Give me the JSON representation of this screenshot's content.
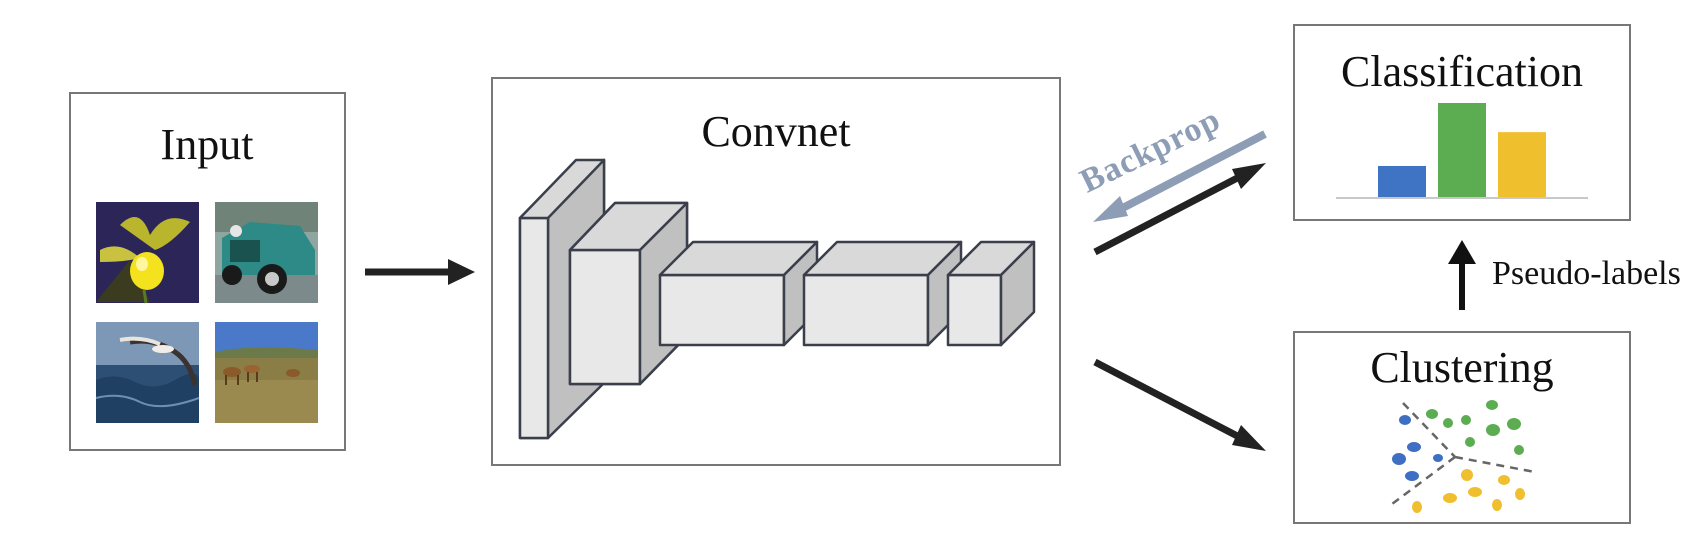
{
  "diagram": {
    "input": {
      "title": "Input",
      "thumbnails": [
        {
          "subject": "yellow orchid flower"
        },
        {
          "subject": "vintage teal car"
        },
        {
          "subject": "seabird over ocean waves"
        },
        {
          "subject": "antelopes on grassland"
        }
      ]
    },
    "convnet": {
      "title": "Convnet"
    },
    "classification": {
      "title": "Classification",
      "bars": [
        {
          "value": 0.33,
          "color": "#3f73c4"
        },
        {
          "value": 1.0,
          "color": "#5cac52"
        },
        {
          "value": 0.69,
          "color": "#f0bf2e"
        }
      ]
    },
    "clustering": {
      "title": "Clustering",
      "clusters": [
        {
          "color": "#3f6fc2"
        },
        {
          "color": "#5cac52"
        },
        {
          "color": "#efbf2e"
        }
      ]
    },
    "labels": {
      "backprop": "Backprop",
      "pseudo_labels": "Pseudo-labels"
    },
    "colors": {
      "arrow": "#222222",
      "backprop_arrow": "#8e9db6",
      "box_border": "#777777",
      "cube_front": "#e8e8e8",
      "cube_side": "#c0c0c0",
      "cube_top": "#d9d9d9",
      "cube_edge": "#3a3f4b"
    }
  }
}
